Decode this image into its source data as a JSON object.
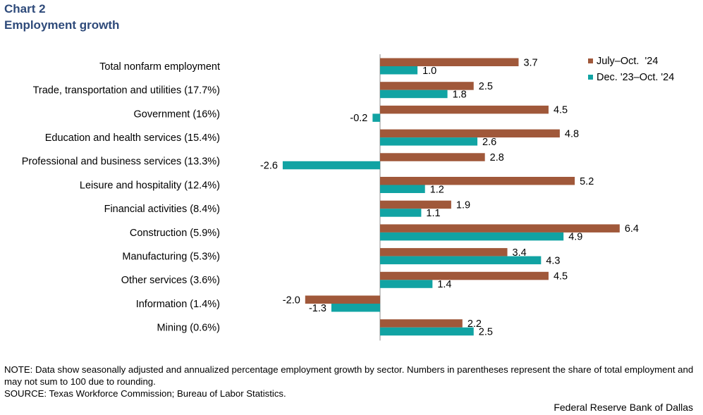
{
  "header": {
    "chart_number": "Chart 2",
    "title": "Employment growth"
  },
  "footer": {
    "note": "NOTE: Data show seasonally adjusted and annualized percentage employment growth by sector. Numbers in parentheses represent the share of total employment and may not sum to 100 due to rounding.",
    "source": "SOURCE: Texas Workforce Commission; Bureau of Labor Statistics.",
    "credit": "Federal Reserve Bank of Dallas"
  },
  "chart_data": {
    "type": "bar",
    "orientation": "horizontal",
    "categories": [
      "Total nonfarm employment",
      "Trade, transportation and utilities (17.7%)",
      "Government (16%)",
      "Education and health services (15.4%)",
      "Professional and business services (13.3%)",
      "Leisure and hospitality (12.4%)",
      "Financial activities (8.4%)",
      "Construction (5.9%)",
      "Manufacturing (5.3%)",
      "Other services (3.6%)",
      "Information (1.4%)",
      "Mining (0.6%)"
    ],
    "series": [
      {
        "name": "July–Oct.  '24",
        "color": "#a0583a",
        "values": [
          3.7,
          2.5,
          4.5,
          4.8,
          2.8,
          5.2,
          1.9,
          6.4,
          3.4,
          4.5,
          -2.0,
          2.2
        ]
      },
      {
        "name": "Dec. '23–Oct. '24",
        "color": "#11a3a3",
        "values": [
          1.0,
          1.8,
          -0.2,
          2.6,
          -2.6,
          1.2,
          1.1,
          4.9,
          4.3,
          1.4,
          -1.3,
          2.5
        ]
      }
    ],
    "legend_position": "top-right",
    "grid": false
  }
}
